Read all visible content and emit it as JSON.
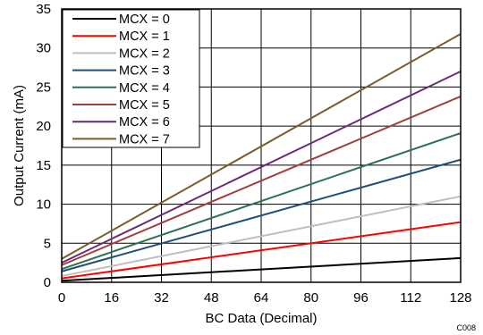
{
  "chart_data": {
    "type": "line",
    "xlabel": "BC Data (Decimal)",
    "ylabel": "Output Current (mA)",
    "xlim": [
      0,
      128
    ],
    "ylim": [
      0,
      35
    ],
    "xticks": [
      0,
      16,
      32,
      48,
      64,
      80,
      96,
      112,
      128
    ],
    "yticks": [
      0,
      5,
      10,
      15,
      20,
      25,
      30,
      35
    ],
    "grid": true,
    "legend_position": "top-left",
    "figure_code": "C008",
    "series": [
      {
        "name": "MCX = 0",
        "color": "#000000",
        "x": [
          0,
          128
        ],
        "y": [
          0.2,
          3.1
        ]
      },
      {
        "name": "MCX = 1",
        "color": "#ff0000",
        "x": [
          0,
          128
        ],
        "y": [
          0.5,
          7.7
        ]
      },
      {
        "name": "MCX = 2",
        "color": "#bfbfbf",
        "x": [
          0,
          128
        ],
        "y": [
          0.8,
          11.0
        ]
      },
      {
        "name": "MCX = 3",
        "color": "#1f4e79",
        "x": [
          0,
          128
        ],
        "y": [
          1.4,
          15.7
        ]
      },
      {
        "name": "MCX = 4",
        "color": "#2e7050",
        "x": [
          0,
          128
        ],
        "y": [
          1.7,
          19.1
        ]
      },
      {
        "name": "MCX = 5",
        "color": "#a0403a",
        "x": [
          0,
          128
        ],
        "y": [
          2.2,
          23.8
        ]
      },
      {
        "name": "MCX = 6",
        "color": "#6a2a78",
        "x": [
          0,
          128
        ],
        "y": [
          2.5,
          27.0
        ]
      },
      {
        "name": "MCX = 7",
        "color": "#7a5c2a",
        "x": [
          0,
          128
        ],
        "y": [
          3.0,
          31.8
        ]
      }
    ]
  }
}
